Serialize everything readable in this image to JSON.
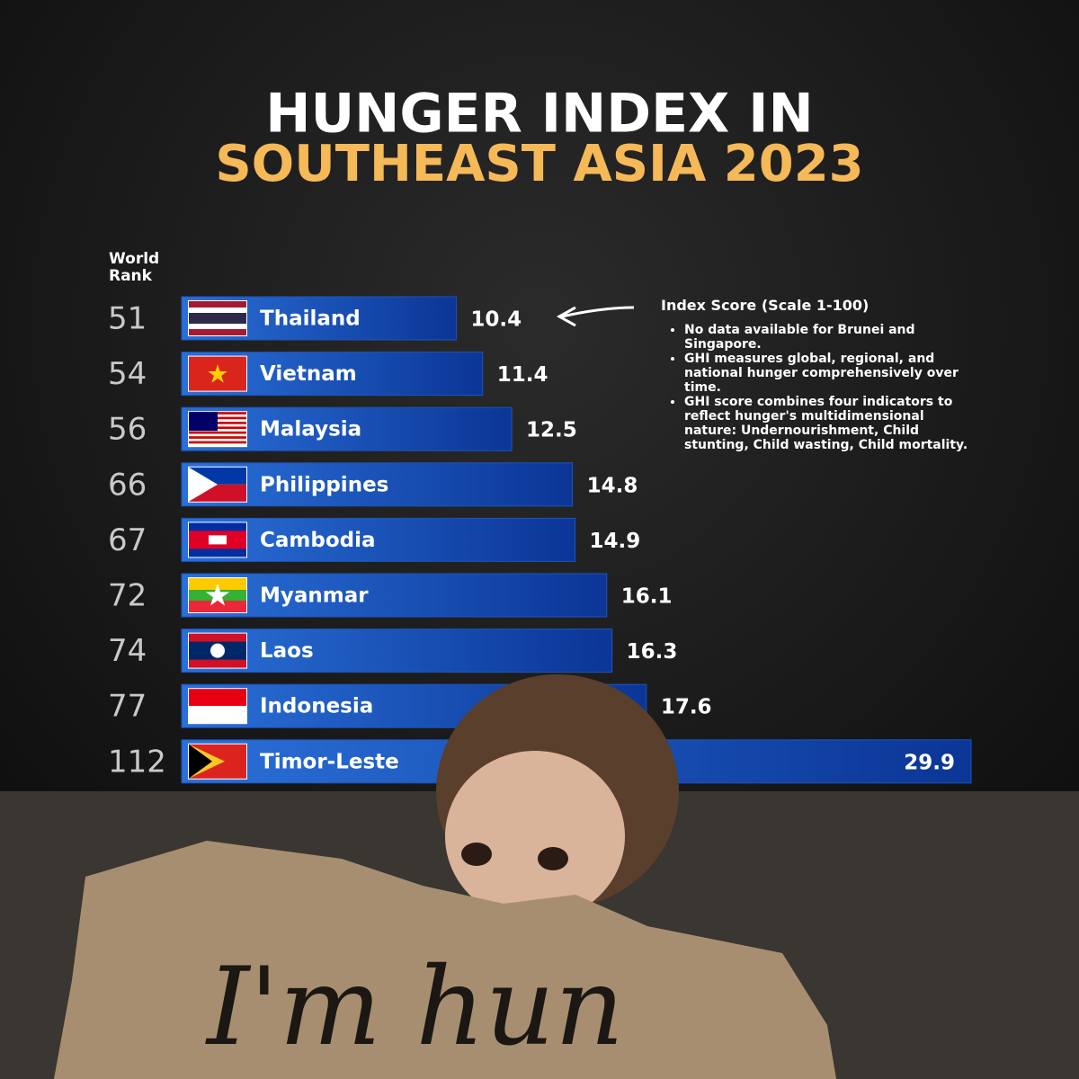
{
  "chart_data": {
    "type": "bar",
    "orientation": "horizontal",
    "title": "HUNGER INDEX IN",
    "subtitle": "SOUTHEAST ASIA 2023",
    "rank_label": "World Rank",
    "categories": [
      "Thailand",
      "Vietnam",
      "Malaysia",
      "Philippines",
      "Cambodia",
      "Myanmar",
      "Laos",
      "Indonesia",
      "Timor-Leste"
    ],
    "ranks": [
      51,
      54,
      56,
      66,
      67,
      72,
      74,
      77,
      112
    ],
    "values": [
      10.4,
      11.4,
      12.5,
      14.8,
      14.9,
      16.1,
      16.3,
      17.6,
      29.9
    ],
    "color": "#1a56c0",
    "annotation": {
      "title": "Index Score (Scale 1-100)",
      "notes": [
        "No data available for Brunei and Singapore.",
        "GHI measures global, regional, and national hunger comprehensively over time.",
        "GHI score combines four indicators to reflect hunger's multidimensional nature: Undernourishment, Child stunting, Child wasting, Child mortality."
      ]
    },
    "sign_text": "I'm hun"
  }
}
